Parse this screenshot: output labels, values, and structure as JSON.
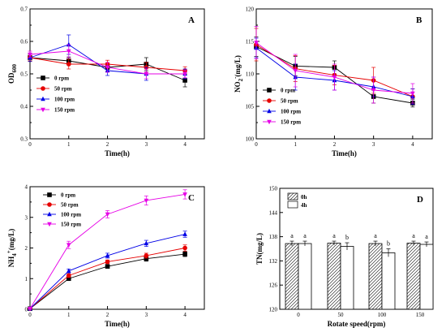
{
  "chart_data": [
    {
      "type": "line",
      "panel_label": "A",
      "xlabel": "Time(h)",
      "ylabel": "OD600",
      "ylabel_main": "OD",
      "ylabel_sub": "600",
      "x": [
        0,
        1,
        2,
        3,
        4
      ],
      "xlim": [
        0,
        4.5
      ],
      "ylim": [
        0.3,
        0.7
      ],
      "xticks": [
        "0",
        "1",
        "2",
        "3",
        "4"
      ],
      "yticks": [
        "0.3",
        "0.4",
        "0.5",
        "0.6",
        "0.7"
      ],
      "legend_position": "bottom-left",
      "series": [
        {
          "name": "0 rpm",
          "color": "#000000",
          "marker": "square",
          "values": [
            0.55,
            0.54,
            0.52,
            0.53,
            0.48
          ],
          "errors": [
            0.01,
            0.012,
            0.012,
            0.02,
            0.02
          ]
        },
        {
          "name": "50 rpm",
          "color": "#e60000",
          "marker": "circle",
          "values": [
            0.55,
            0.53,
            0.53,
            0.52,
            0.51
          ],
          "errors": [
            0.01,
            0.015,
            0.012,
            0.015,
            0.012
          ]
        },
        {
          "name": "100 rpm",
          "color": "#0000e6",
          "marker": "triangle-up",
          "values": [
            0.55,
            0.59,
            0.51,
            0.5,
            0.5
          ],
          "errors": [
            0.012,
            0.03,
            0.015,
            0.02,
            0.015
          ]
        },
        {
          "name": "150 rpm",
          "color": "#e600e6",
          "marker": "triangle-down",
          "values": [
            0.56,
            0.57,
            0.52,
            0.5,
            0.5
          ],
          "errors": [
            0.01,
            0.02,
            0.015,
            0.015,
            0.012
          ]
        }
      ]
    },
    {
      "type": "line",
      "panel_label": "B",
      "xlabel": "Time(h)",
      "ylabel": "NO2-(mg/L)",
      "ylabel_main": "NO",
      "ylabel_sub": "2",
      "ylabel_sup": "-",
      "ylabel_rest": "(mg/L)",
      "x": [
        0,
        1,
        2,
        3,
        4
      ],
      "xlim": [
        0,
        4.5
      ],
      "ylim": [
        100,
        120
      ],
      "xticks": [
        "0",
        "1",
        "2",
        "3",
        "4"
      ],
      "yticks": [
        "100",
        "105",
        "110",
        "115",
        "120"
      ],
      "legend_position": "bottom-left",
      "series": [
        {
          "name": "0 rpm",
          "color": "#000000",
          "marker": "square",
          "values": [
            114.2,
            111.2,
            111,
            106.5,
            105.5
          ],
          "errors": [
            1.5,
            1.5,
            1.0,
            1.0,
            0.6
          ]
        },
        {
          "name": "50 rpm",
          "color": "#e60000",
          "marker": "circle",
          "values": [
            114.5,
            110.8,
            109.8,
            109,
            106.5
          ],
          "errors": [
            2.5,
            2.0,
            1.5,
            2.0,
            1.2
          ]
        },
        {
          "name": "100 rpm",
          "color": "#0000e6",
          "marker": "triangle-up",
          "values": [
            114,
            109.5,
            109,
            108,
            106.5
          ],
          "errors": [
            1.5,
            2.0,
            1.5,
            1.5,
            1.2
          ]
        },
        {
          "name": "150 rpm",
          "color": "#e600e6",
          "marker": "triangle-down",
          "values": [
            114.8,
            110.5,
            109.5,
            107.5,
            107
          ],
          "errors": [
            2.5,
            2.5,
            2.0,
            2.0,
            1.5
          ]
        }
      ]
    },
    {
      "type": "line",
      "panel_label": "C",
      "xlabel": "Time(h)",
      "ylabel": "NH4+(mg/L)",
      "ylabel_main": "NH",
      "ylabel_sub": "4",
      "ylabel_sup": "+",
      "ylabel_rest": "(mg/L)",
      "x": [
        0,
        1,
        2,
        3,
        4
      ],
      "xlim": [
        0,
        4.5
      ],
      "ylim": [
        0,
        4
      ],
      "xticks": [
        "0",
        "1",
        "2",
        "3",
        "4"
      ],
      "yticks": [
        "0",
        "1",
        "2",
        "3",
        "4"
      ],
      "legend_position": "top-left",
      "series": [
        {
          "name": "0 rpm",
          "color": "#000000",
          "marker": "square",
          "values": [
            0.02,
            1.0,
            1.4,
            1.65,
            1.8
          ],
          "errors": [
            0.02,
            0.06,
            0.06,
            0.08,
            0.08
          ]
        },
        {
          "name": "50 rpm",
          "color": "#e60000",
          "marker": "circle",
          "values": [
            0.02,
            1.1,
            1.55,
            1.75,
            2.0
          ],
          "errors": [
            0.02,
            0.06,
            0.06,
            0.08,
            0.1
          ]
        },
        {
          "name": "100 rpm",
          "color": "#0000e6",
          "marker": "triangle-up",
          "values": [
            0.02,
            1.25,
            1.75,
            2.15,
            2.45
          ],
          "errors": [
            0.02,
            0.06,
            0.08,
            0.1,
            0.1
          ]
        },
        {
          "name": "150 rpm",
          "color": "#e600e6",
          "marker": "triangle-down",
          "values": [
            0.02,
            2.1,
            3.1,
            3.55,
            3.75
          ],
          "errors": [
            0.02,
            0.12,
            0.12,
            0.15,
            0.15
          ]
        }
      ]
    },
    {
      "type": "bar",
      "panel_label": "D",
      "xlabel": "Rotate speed(rpm)",
      "ylabel": "TN(mg/L)",
      "categories": [
        "0",
        "50",
        "100",
        "150"
      ],
      "ylim": [
        120,
        150
      ],
      "yticks": [
        "120",
        "126",
        "132",
        "138",
        "144",
        "150"
      ],
      "legend_position": "top-left",
      "series": [
        {
          "name": "0h",
          "pattern": "hatched",
          "values": [
            136.3,
            136.4,
            136.3,
            136.4
          ],
          "errors": [
            0.6,
            0.5,
            0.6,
            0.5
          ],
          "labels": [
            "a",
            "a",
            "a",
            "a"
          ]
        },
        {
          "name": "4h",
          "pattern": "plain",
          "values": [
            136.3,
            135.6,
            134.0,
            136.1
          ],
          "errors": [
            0.6,
            0.9,
            1.0,
            0.6
          ],
          "labels": [
            "a",
            "b",
            "b",
            "a"
          ]
        }
      ]
    }
  ]
}
